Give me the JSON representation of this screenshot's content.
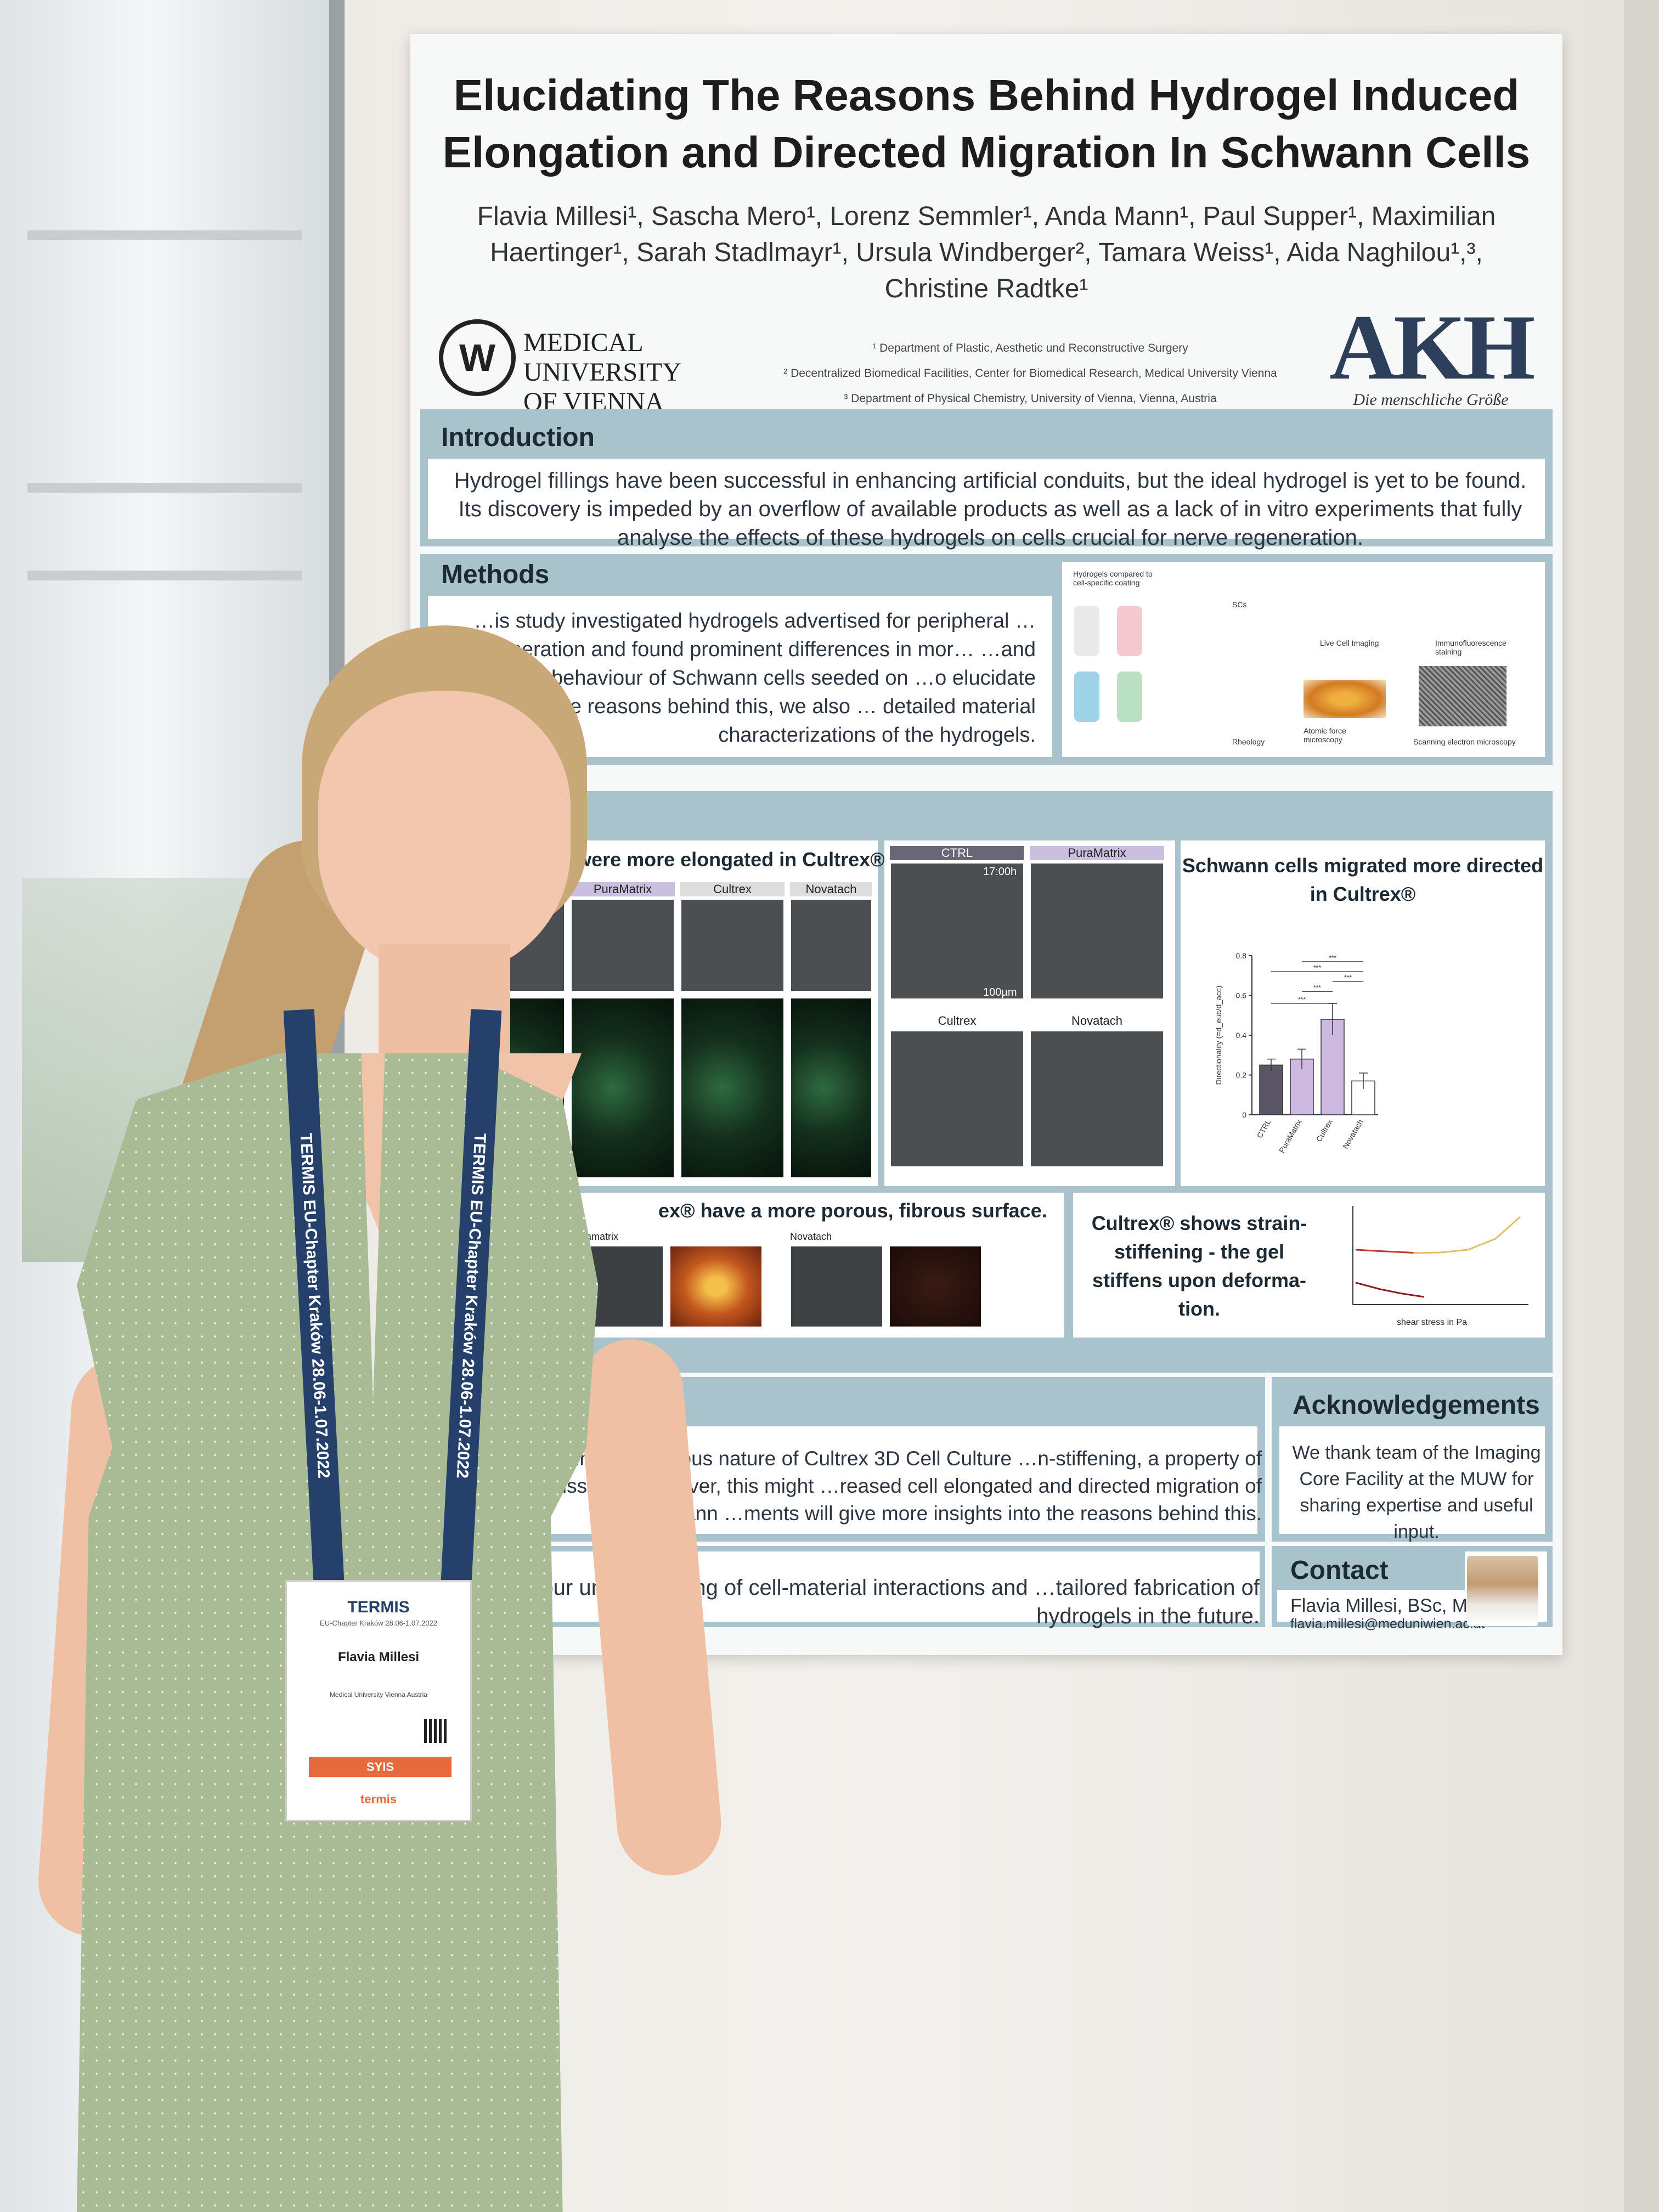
{
  "poster": {
    "title": "Elucidating The Reasons Behind Hydrogel Induced Elongation and Directed Migration In Schwann Cells",
    "authors": "Flavia Millesi¹, Sascha Mero¹, Lorenz Semmler¹, Anda Mann¹, Paul Supper¹, Maximilian Haertinger¹, Sarah Stadlmayr¹, Ursula Windberger², Tamara Weiss¹, Aida Naghilou¹,³, Christine Radtke¹",
    "university": "MEDICAL UNIVERSITY OF VIENNA",
    "affiliations": [
      "¹ Department of Plastic, Aesthetic und Reconstructive Surgery",
      "² Decentralized Biomedical Facilities, Center for Biomedical Research, Medical University Vienna",
      "³ Department of Physical Chemistry, University of Vienna, Vienna, Austria"
    ],
    "hospital_logo": "AKH",
    "hospital_tagline": "Die menschliche Größe",
    "introduction": {
      "heading": "Introduction",
      "text": "Hydrogel fillings have been successful in enhancing artificial conduits, but the ideal hydrogel is yet to be found. Its discovery is impeded by an overflow of available products as well as a lack of in vitro experiments that fully analyse the effects of these hydrogels on cells crucial for nerve regeneration."
    },
    "methods": {
      "heading": "Methods",
      "text": "…is study investigated hydrogels advertised for peripheral …regeneration and found prominent differences in mor… …and migratory behaviour of Schwann cells seeded on …o elucidate the possible reasons behind this, we also … detailed material characterizations of the hydrogels.",
      "figure_labels": [
        "Hydrogels compared to cell-specific coating",
        "SCs",
        "Live Cell Imaging",
        "Immunofluorescence staining",
        "Rheology",
        "Atomic force microscopy",
        "Scanning electron microscopy"
      ]
    },
    "results": {
      "elongation_title": "cells were more elongated in Cultrex®",
      "elongation_labels": [
        "PuraMatrix",
        "Cultrex",
        "Novatach"
      ],
      "migration_labels": [
        "CTRL",
        "PuraMatrix",
        "Cultrex",
        "Novatach"
      ],
      "migration_time": "17:00h",
      "scale_bar": "100µm",
      "migration_title": "Schwann cells migrated more directed in Cultrex®",
      "porous_title": "ex® have a more porous, fibrous surface.",
      "porous_labels": [
        "Puramatrix",
        "Novatach"
      ],
      "strain_text": "Cultrex® shows strain-stiffening - the gel stiffens upon deforma-tion.",
      "strain_xlabel": "shear stress in Pa"
    },
    "conclusion": {
      "text": "…ghly connected, fibrous nature of Cultrex 3D Cell Culture …n-stiffening, a property of many tissues. Moreover, this might …reased cell elongated and directed migration of Schwann …ments will give more insights into the reasons behind this."
    },
    "acknowledgements": {
      "heading": "Acknowledgements",
      "text": "We thank team of the Imaging Core Facility at the MUW for sharing expertise and useful input."
    },
    "outlook": {
      "text": "…our understanding of cell-material interactions and …tailored fabrication of hydrogels in the future."
    },
    "contact": {
      "heading": "Contact",
      "name": "Flavia Millesi, BSc, MSc",
      "email": "flavia.millesi@meduniwien.ac.at"
    }
  },
  "chart_data": {
    "type": "bar",
    "categories": [
      "CTRL",
      "PuraMatrix",
      "Cultrex",
      "Novatach"
    ],
    "values": [
      0.25,
      0.28,
      0.48,
      0.17
    ],
    "errors": [
      0.03,
      0.05,
      0.08,
      0.04
    ],
    "ylabel": "Directionality (=d_euc/d_acc)",
    "ylim": [
      0,
      0.8
    ],
    "yticks": [
      0,
      0.2,
      0.4,
      0.6,
      0.8
    ],
    "significance": "***",
    "colors": [
      "#5a5668",
      "#cdb9e0",
      "#cdb9e0",
      "#ffffff"
    ]
  },
  "badge": {
    "event": "TERMIS",
    "meta": "EU-Chapter Kraków 28.06-1.07.2022",
    "name": "Flavia Millesi",
    "institution": "Medical University Vienna Austria",
    "role": "SYIS",
    "footer": "termis"
  },
  "lanyard_text": "TERMIS EU-Chapter Kraków 28.06-1.07.2022"
}
